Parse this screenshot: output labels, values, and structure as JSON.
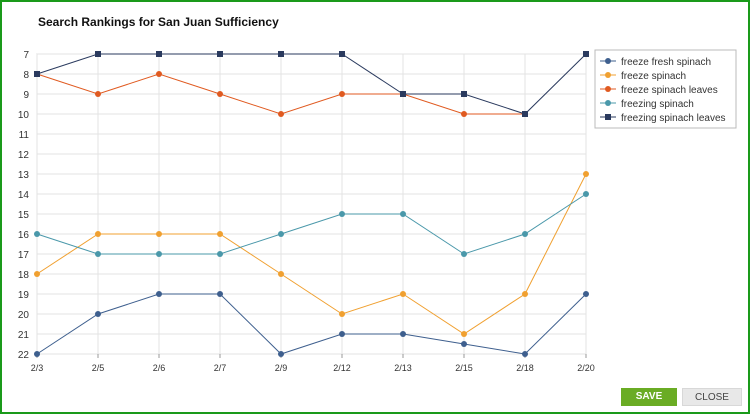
{
  "dialog": {
    "save_label": "SAVE",
    "close_label": "CLOSE",
    "colors": {
      "frame": "#1a9a1a",
      "save": "#6aac24"
    }
  },
  "chart_data": {
    "type": "line",
    "title": "Search Rankings for San Juan Sufficiency",
    "xlabel": "",
    "ylabel": "",
    "categories": [
      "2/3",
      "2/5",
      "2/6",
      "2/7",
      "2/9",
      "2/12",
      "2/13",
      "2/15",
      "2/18",
      "2/20"
    ],
    "y_ticks": [
      7,
      8,
      9,
      10,
      11,
      12,
      13,
      14,
      15,
      16,
      17,
      18,
      19,
      20,
      21,
      22
    ],
    "ylim": [
      7,
      22
    ],
    "y_inverted": true,
    "grid": true,
    "legend_position": "right",
    "series": [
      {
        "name": "freeze fresh spinach",
        "color": "#3e5f8e",
        "marker": "circle",
        "values": [
          22,
          20,
          19,
          19,
          22,
          21,
          21,
          21.5,
          22,
          19
        ]
      },
      {
        "name": "freeze spinach",
        "color": "#f0a030",
        "marker": "circle",
        "values": [
          18,
          16,
          16,
          16,
          18,
          20,
          19,
          21,
          19,
          13
        ]
      },
      {
        "name": "freeze spinach leaves",
        "color": "#e05a20",
        "marker": "circle",
        "values": [
          8,
          9,
          8,
          9,
          10,
          9,
          9,
          10,
          10,
          null
        ]
      },
      {
        "name": "freezing spinach",
        "color": "#4a98aa",
        "marker": "circle",
        "values": [
          16,
          17,
          17,
          17,
          16,
          15,
          15,
          17,
          16,
          14
        ]
      },
      {
        "name": "freezing spinach leaves",
        "color": "#2a3a5e",
        "marker": "square",
        "values": [
          8,
          7,
          7,
          7,
          7,
          7,
          9,
          9,
          10,
          7
        ]
      }
    ]
  }
}
